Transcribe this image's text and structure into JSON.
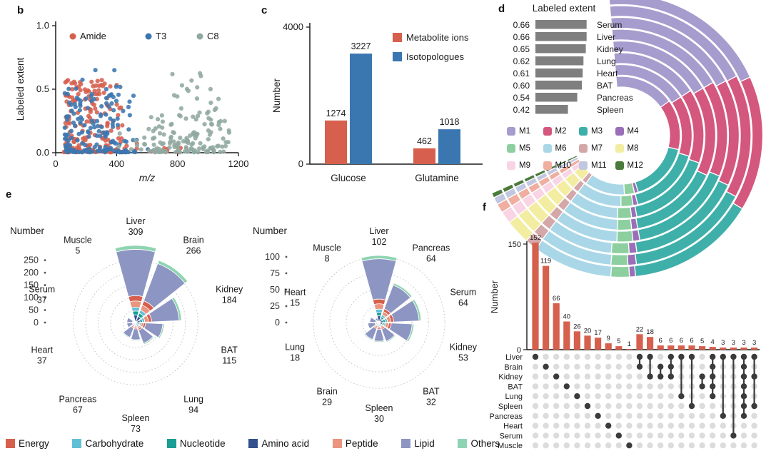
{
  "panel_labels": {
    "b": "b",
    "c": "c",
    "d": "d",
    "e": "e",
    "f": "f"
  },
  "category_legend": [
    {
      "label": "Energy",
      "color": "#d6604d"
    },
    {
      "label": "Carbohydrate",
      "color": "#62c0d4"
    },
    {
      "label": "Nucleotide",
      "color": "#189e92"
    },
    {
      "label": "Amino acid",
      "color": "#31508d"
    },
    {
      "label": "Peptide",
      "color": "#eb9580"
    },
    {
      "label": "Lipid",
      "color": "#8d95c3"
    },
    {
      "label": "Others",
      "color": "#8fd4b2"
    }
  ],
  "rose_composition": {
    "order": [
      "Amino acid",
      "Nucleotide",
      "Carbohydrate",
      "Peptide",
      "Energy",
      "Lipid",
      "Others"
    ],
    "fractions": [
      0.1,
      0.05,
      0.05,
      0.08,
      0.07,
      0.6,
      0.05
    ]
  },
  "chart_data": [
    {
      "id": "b",
      "type": "scatter",
      "xlabel": "m/z",
      "ylabel": "Labeled extent",
      "xlim": [
        0,
        1200
      ],
      "ylim": [
        0,
        1.0
      ],
      "xticks": [
        0,
        400,
        800,
        1200
      ],
      "yticks": [
        0,
        0.5,
        1
      ],
      "ytick_labels": [
        "0.0",
        "0.5",
        "1.0"
      ],
      "series": [
        {
          "name": "Amide",
          "color": "#d6604d",
          "clusters": [
            {
              "n": 150,
              "x": [
                55,
                450
              ],
              "y": [
                0.005,
                0.58
              ],
              "xbias": 1.4,
              "ybias": 2.8
            },
            {
              "n": 28,
              "x": [
                60,
                370
              ],
              "y": [
                0.3,
                0.57
              ],
              "xbias": 1.3,
              "ybias": 1.0
            },
            {
              "n": 12,
              "x": [
                450,
                820
              ],
              "y": [
                0.003,
                0.09
              ],
              "xbias": 1.0,
              "ybias": 1.5
            }
          ]
        },
        {
          "name": "T3",
          "color": "#3a76b0",
          "clusters": [
            {
              "n": 130,
              "x": [
                60,
                520
              ],
              "y": [
                0.004,
                0.5
              ],
              "xbias": 1.4,
              "ybias": 2.8
            },
            {
              "n": 18,
              "x": [
                70,
                420
              ],
              "y": [
                0.28,
                0.52
              ],
              "xbias": 1.2,
              "ybias": 1.0
            },
            {
              "n": 6,
              "x": [
                90,
                430
              ],
              "y": [
                0.45,
                0.66
              ],
              "xbias": 1.0,
              "ybias": 1.0
            },
            {
              "n": 8,
              "x": [
                420,
                620
              ],
              "y": [
                0.003,
                0.12
              ],
              "xbias": 1.0,
              "ybias": 1.5
            }
          ]
        },
        {
          "name": "C8",
          "color": "#91a8a0",
          "clusters": [
            {
              "n": 120,
              "x": [
                610,
                1140
              ],
              "y": [
                0.004,
                0.3
              ],
              "xbias": 1.0,
              "ybias": 2.4
            },
            {
              "n": 22,
              "x": [
                760,
                1080
              ],
              "y": [
                0.25,
                0.66
              ],
              "xbias": 1.0,
              "ybias": 1.3
            },
            {
              "n": 14,
              "x": [
                390,
                650
              ],
              "y": [
                0.004,
                0.2
              ],
              "xbias": 1.0,
              "ybias": 1.8
            }
          ]
        }
      ]
    },
    {
      "id": "c",
      "type": "grouped-bar",
      "ylabel": "Number",
      "ylim": [
        0,
        4000
      ],
      "yticks": [
        0,
        4000
      ],
      "categories": [
        "Glucose",
        "Glutamine"
      ],
      "series": [
        {
          "name": "Metabolite ions",
          "color": "#d6604d",
          "values": [
            1274,
            462
          ]
        },
        {
          "name": "Isotopologues",
          "color": "#3a76b0",
          "values": [
            3227,
            1018
          ]
        }
      ]
    },
    {
      "id": "d-bars",
      "type": "horizontal-bar",
      "title": "Labeled extent",
      "bar_color": "#7f7f7f",
      "rows": [
        {
          "organ": "Serum",
          "value": "0.66"
        },
        {
          "organ": "Liver",
          "value": "0.66"
        },
        {
          "organ": "Kidney",
          "value": "0.65"
        },
        {
          "organ": "Lung",
          "value": "0.62"
        },
        {
          "organ": "Heart",
          "value": "0.61"
        },
        {
          "organ": "BAT",
          "value": "0.60"
        },
        {
          "organ": "Pancreas",
          "value": "0.54"
        },
        {
          "organ": "Spleen",
          "value": "0.42"
        }
      ]
    },
    {
      "id": "d-rings",
      "type": "radial-stacked",
      "legend": [
        {
          "label": "M1",
          "color": "#a79cce"
        },
        {
          "label": "M2",
          "color": "#d4577e"
        },
        {
          "label": "M3",
          "color": "#3fafa9"
        },
        {
          "label": "M4",
          "color": "#9a6fb8"
        },
        {
          "label": "M5",
          "color": "#8ecf9f"
        },
        {
          "label": "M6",
          "color": "#a9d7e8"
        },
        {
          "label": "M7",
          "color": "#d4a7a9"
        },
        {
          "label": "M8",
          "color": "#f2eda0"
        },
        {
          "label": "M9",
          "color": "#f8d4e4"
        },
        {
          "label": "M10",
          "color": "#efae9f"
        },
        {
          "label": "M11",
          "color": "#c2c7e1"
        },
        {
          "label": "M12",
          "color": "#4b7a3c"
        }
      ],
      "rings": [
        {
          "organ": "Serum",
          "fractions": [
            0.28,
            0.22,
            0.21,
            0.01,
            0.03,
            0.13,
            0.02,
            0.04,
            0.02,
            0.015,
            0.012,
            0.008
          ]
        },
        {
          "organ": "Liver",
          "fractions": [
            0.27,
            0.22,
            0.22,
            0.015,
            0.03,
            0.13,
            0.02,
            0.04,
            0.02,
            0.015,
            0.012,
            0.008
          ]
        },
        {
          "organ": "Kidney",
          "fractions": [
            0.27,
            0.21,
            0.23,
            0.015,
            0.035,
            0.13,
            0.02,
            0.04,
            0.02,
            0.015,
            0.012,
            0.008
          ]
        },
        {
          "organ": "Lung",
          "fractions": [
            0.26,
            0.21,
            0.23,
            0.015,
            0.035,
            0.14,
            0.02,
            0.04,
            0.02,
            0.015,
            0.012,
            0.008
          ]
        },
        {
          "organ": "Heart",
          "fractions": [
            0.26,
            0.22,
            0.22,
            0.015,
            0.035,
            0.14,
            0.02,
            0.04,
            0.02,
            0.015,
            0.012,
            0.008
          ]
        },
        {
          "organ": "BAT",
          "fractions": [
            0.25,
            0.21,
            0.24,
            0.015,
            0.04,
            0.14,
            0.02,
            0.04,
            0.02,
            0.015,
            0.012,
            0.008
          ]
        },
        {
          "organ": "Pancreas",
          "fractions": [
            0.25,
            0.2,
            0.24,
            0.015,
            0.04,
            0.15,
            0.02,
            0.04,
            0.02,
            0.015,
            0.012,
            0.008
          ]
        },
        {
          "organ": "Spleen",
          "fractions": [
            0.24,
            0.2,
            0.24,
            0.015,
            0.04,
            0.16,
            0.02,
            0.045,
            0.02,
            0.015,
            0.012,
            0.008
          ]
        }
      ]
    },
    {
      "id": "e1",
      "type": "rose",
      "axis_label": "Number",
      "ticks": [
        0,
        50,
        100,
        150,
        200,
        250
      ],
      "rmax": 309,
      "sectors": [
        {
          "name": "Liver",
          "value": 309
        },
        {
          "name": "Brain",
          "value": 266
        },
        {
          "name": "Kidney",
          "value": 184
        },
        {
          "name": "BAT",
          "value": 115
        },
        {
          "name": "Lung",
          "value": 94
        },
        {
          "name": "Spleen",
          "value": 73
        },
        {
          "name": "Pancreas",
          "value": 67
        },
        {
          "name": "Heart",
          "value": 37
        },
        {
          "name": "Serum",
          "value": 37
        },
        {
          "name": "Muscle",
          "value": 5
        }
      ]
    },
    {
      "id": "e2",
      "type": "rose",
      "axis_label": "Number",
      "ticks": [
        0,
        25,
        50,
        75,
        100
      ],
      "rmax": 102,
      "sectors": [
        {
          "name": "Liver",
          "value": 102
        },
        {
          "name": "Pancreas",
          "value": 64
        },
        {
          "name": "Serum",
          "value": 64
        },
        {
          "name": "Kidney",
          "value": 53
        },
        {
          "name": "BAT",
          "value": 32
        },
        {
          "name": "Spleen",
          "value": 30
        },
        {
          "name": "Brain",
          "value": 29
        },
        {
          "name": "Lung",
          "value": 18
        },
        {
          "name": "Heart",
          "value": 15
        },
        {
          "name": "Muscle",
          "value": 8
        }
      ]
    },
    {
      "id": "f",
      "type": "upset",
      "ylabel": "Number",
      "yticks": [
        0,
        150
      ],
      "bar_color": "#d6604d",
      "sets": [
        "Liver",
        "Brain",
        "Kidney",
        "BAT",
        "Lung",
        "Spleen",
        "Pancreas",
        "Heart",
        "Serum",
        "Muscle"
      ],
      "columns": [
        {
          "value": 152,
          "members": [
            "Liver"
          ]
        },
        {
          "value": 119,
          "members": [
            "Brain"
          ]
        },
        {
          "value": 66,
          "members": [
            "Kidney"
          ]
        },
        {
          "value": 40,
          "members": [
            "BAT"
          ]
        },
        {
          "value": 26,
          "members": [
            "Lung"
          ]
        },
        {
          "value": 20,
          "members": [
            "Spleen"
          ]
        },
        {
          "value": 17,
          "members": [
            "Pancreas"
          ]
        },
        {
          "value": 9,
          "members": [
            "Heart"
          ]
        },
        {
          "value": 5,
          "members": [
            "Serum"
          ]
        },
        {
          "value": 1,
          "members": [
            "Muscle"
          ]
        },
        {
          "value": 22,
          "members": [
            "Liver",
            "Brain"
          ]
        },
        {
          "value": 18,
          "members": [
            "Liver",
            "Kidney"
          ]
        },
        {
          "value": 6,
          "members": [
            "Brain",
            "Kidney"
          ]
        },
        {
          "value": 6,
          "members": [
            "Liver",
            "Brain",
            "Kidney"
          ]
        },
        {
          "value": 6,
          "members": [
            "Liver",
            "Lung"
          ]
        },
        {
          "value": 6,
          "members": [
            "Liver",
            "Spleen"
          ]
        },
        {
          "value": 5,
          "members": [
            "Kidney",
            "BAT"
          ]
        },
        {
          "value": 4,
          "members": [
            "Liver",
            "Brain",
            "Kidney",
            "BAT",
            "Lung"
          ]
        },
        {
          "value": 3,
          "members": [
            "Liver",
            "Pancreas"
          ]
        },
        {
          "value": 3,
          "members": [
            "Liver",
            "Serum"
          ]
        },
        {
          "value": 3,
          "members": [
            "Liver",
            "Brain",
            "Kidney",
            "BAT",
            "Lung",
            "Spleen",
            "Pancreas"
          ]
        },
        {
          "value": 3,
          "members": [
            "Liver",
            "Kidney",
            "Spleen"
          ]
        }
      ]
    }
  ]
}
